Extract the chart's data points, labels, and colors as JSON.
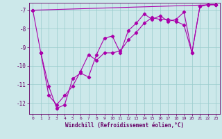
{
  "xlabel": "Windchill (Refroidissement éolien,°C)",
  "bg_color": "#cce8ea",
  "grid_color": "#99cccc",
  "line_color": "#aa00aa",
  "marker": "D",
  "markersize": 2.2,
  "linewidth": 0.8,
  "ylim": [
    -12.6,
    -6.6
  ],
  "xlim": [
    -0.5,
    23.5
  ],
  "yticks": [
    -12,
    -11,
    -10,
    -9,
    -8,
    -7
  ],
  "xticks": [
    0,
    1,
    2,
    3,
    4,
    5,
    6,
    7,
    8,
    9,
    10,
    11,
    12,
    13,
    14,
    15,
    16,
    17,
    18,
    19,
    20,
    21,
    22,
    23
  ],
  "series1_x": [
    0,
    1
  ],
  "series1_y": [
    -7.0,
    -9.3
  ],
  "series2_x": [
    1,
    2,
    3,
    4,
    5,
    6,
    7,
    8,
    9,
    10,
    11,
    12,
    13,
    14,
    15,
    16,
    17,
    18,
    19,
    20,
    21,
    22,
    23
  ],
  "series2_y": [
    -9.3,
    -11.1,
    -12.3,
    -12.1,
    -10.7,
    -10.4,
    -10.6,
    -9.4,
    -8.5,
    -8.4,
    -9.3,
    -8.1,
    -7.7,
    -7.2,
    -7.5,
    -7.3,
    -7.6,
    -7.5,
    -7.1,
    -9.3,
    -6.8,
    -6.7,
    -6.7
  ],
  "series3_x": [
    1,
    2,
    3,
    4,
    5,
    6,
    7,
    8,
    9,
    10,
    11,
    12,
    13,
    14,
    15,
    16,
    17,
    18,
    19,
    20,
    21,
    22,
    23
  ],
  "series3_y": [
    -9.3,
    -11.6,
    -12.1,
    -11.6,
    -11.1,
    -10.3,
    -9.4,
    -9.7,
    -9.3,
    -9.3,
    -9.2,
    -8.6,
    -8.2,
    -7.7,
    -7.4,
    -7.5,
    -7.5,
    -7.6,
    -7.8,
    -9.3,
    -6.8,
    -6.7,
    -6.7
  ],
  "series4_x": [
    0,
    23
  ],
  "series4_y": [
    -7.0,
    -6.7
  ],
  "xlabel_color": "#660066",
  "tick_color": "#660066",
  "spine_color": "#660066"
}
